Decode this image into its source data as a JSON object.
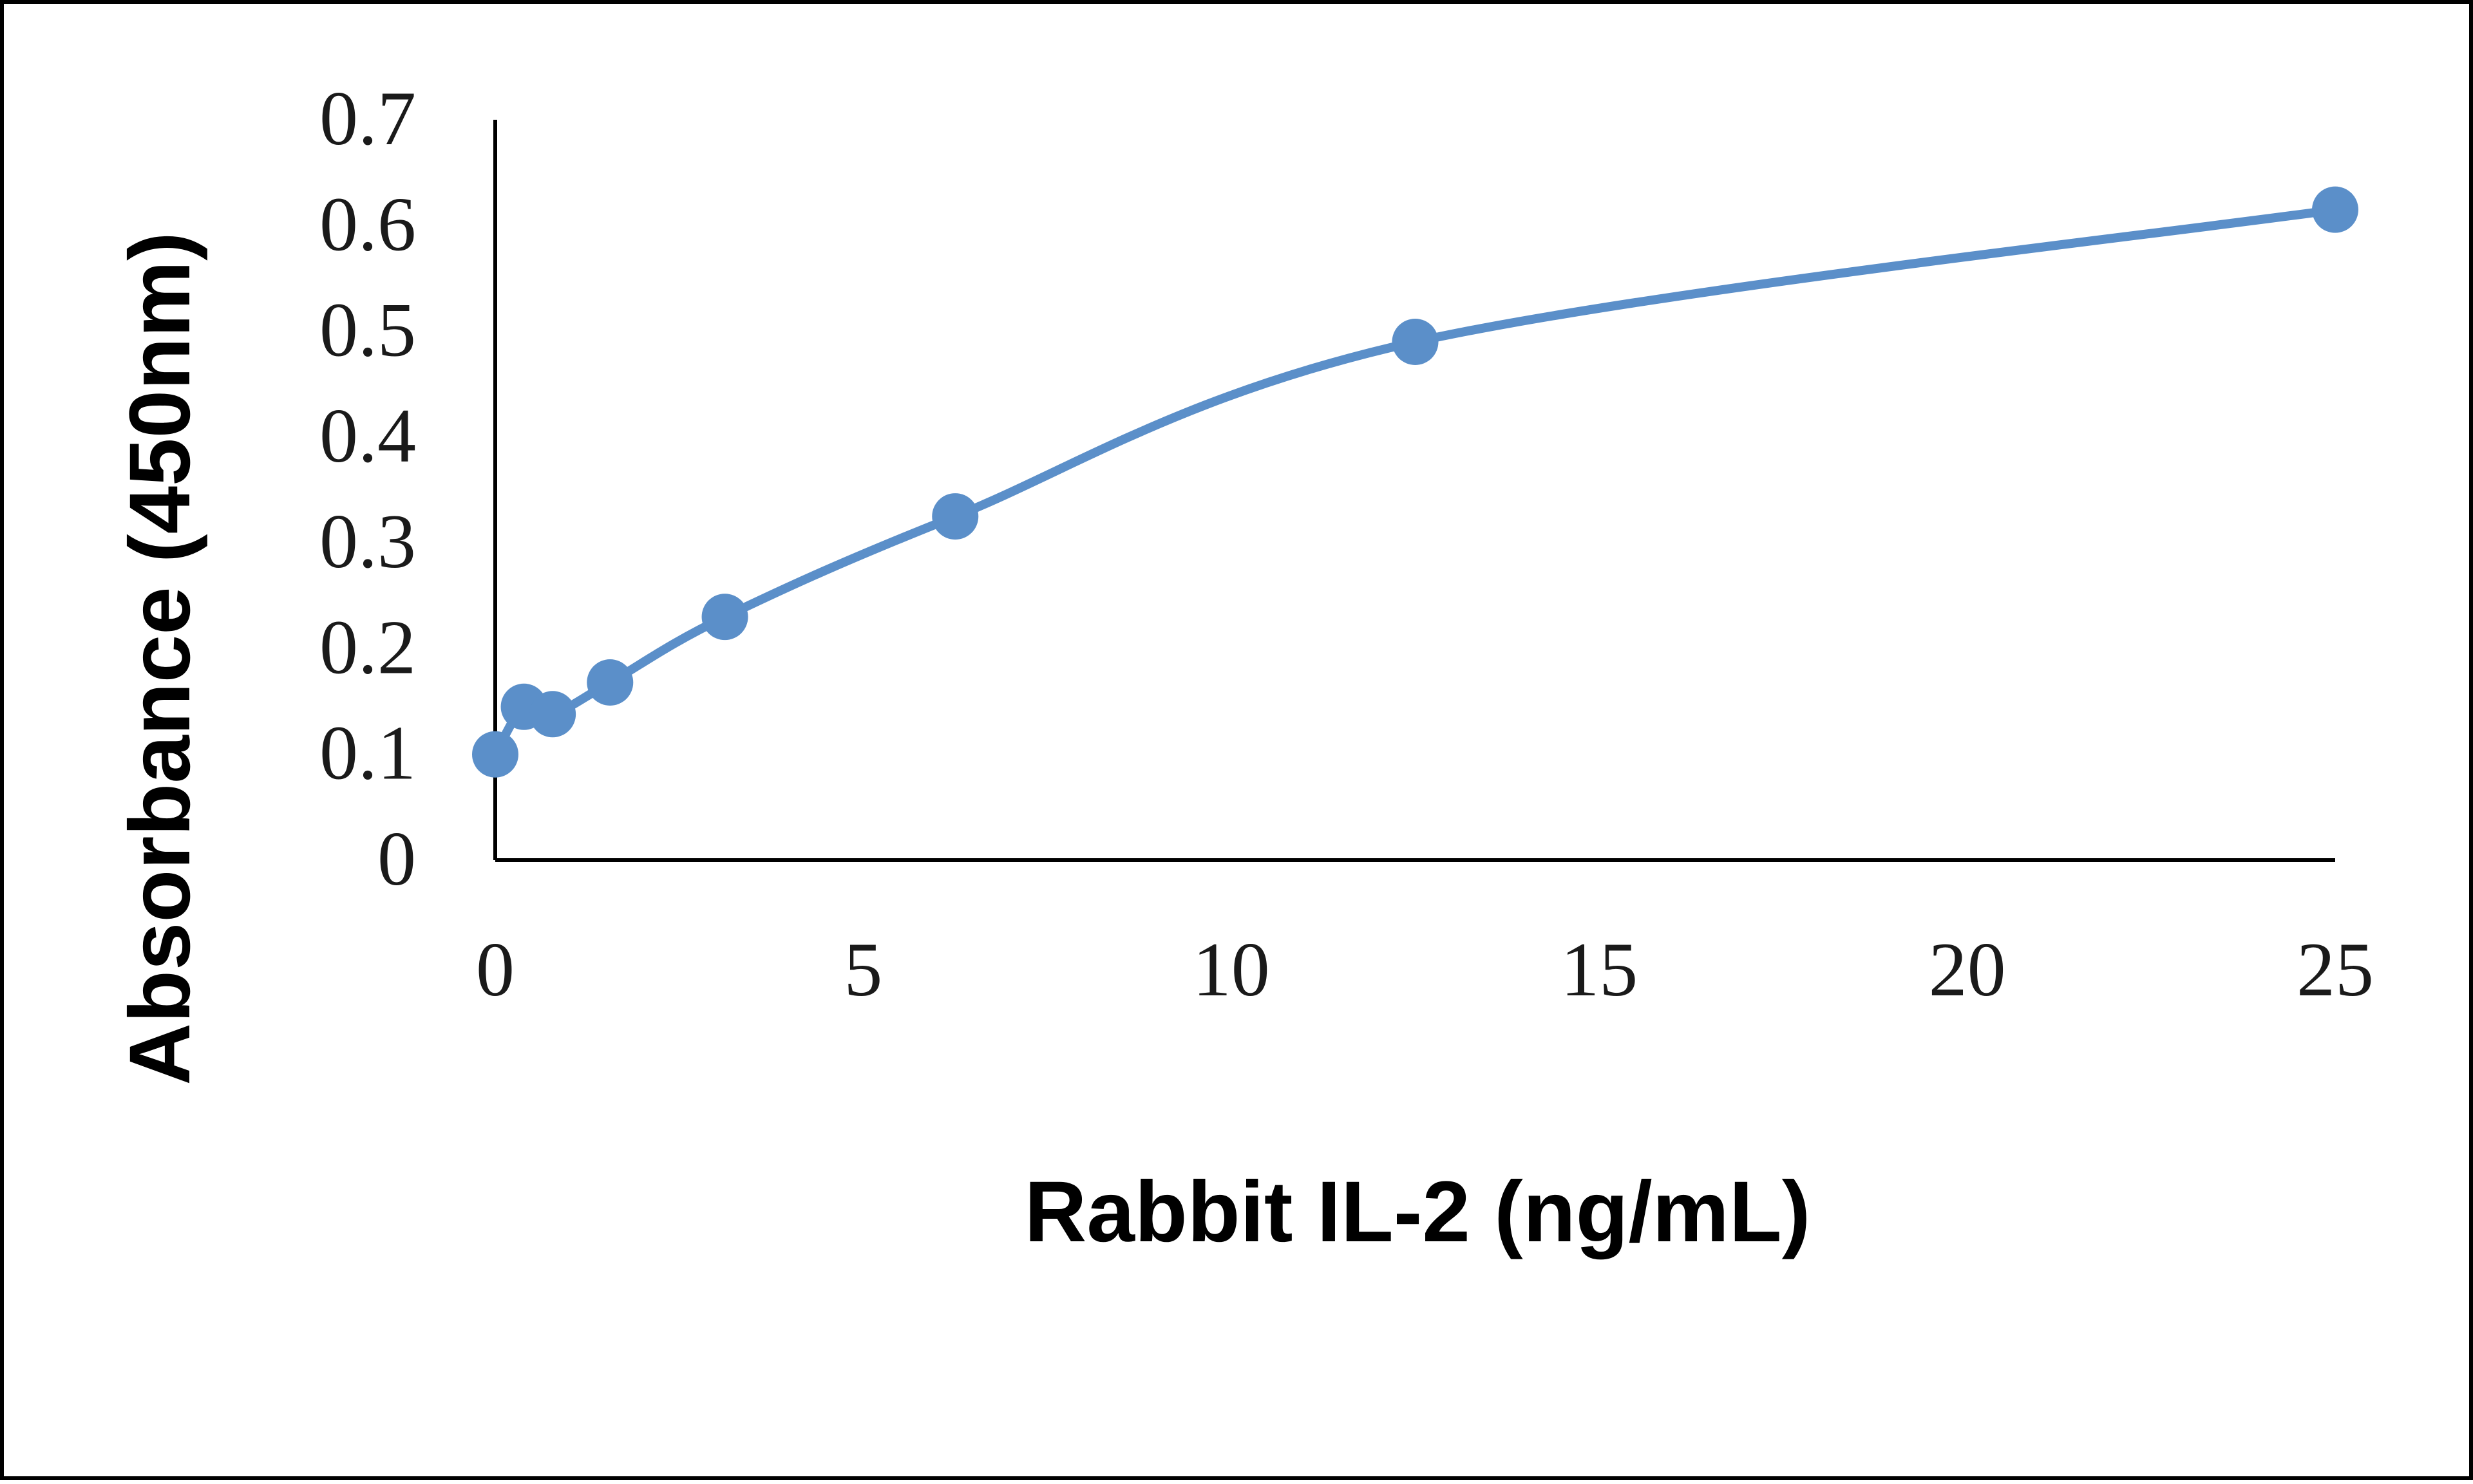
{
  "chart_data": {
    "type": "line",
    "title": "",
    "xlabel": "Rabbit IL-2 (ng/mL)",
    "ylabel": "Absorbance (450nm)",
    "xlim": [
      0,
      25
    ],
    "ylim": [
      0,
      0.7
    ],
    "xticks": [
      "0",
      "5",
      "10",
      "15",
      "20",
      "25"
    ],
    "yticks": [
      "0",
      "0.1",
      "0.2",
      "0.3",
      "0.4",
      "0.5",
      "0.6",
      "0.7"
    ],
    "grid": false,
    "legend": "none",
    "smooth": true,
    "color": "#5b8fc9",
    "series": [
      {
        "x": [
          0,
          0.39,
          0.78,
          1.56,
          3.12,
          6.25,
          12.5,
          25
        ],
        "y": [
          0.1,
          0.145,
          0.138,
          0.168,
          0.23,
          0.325,
          0.49,
          0.615
        ]
      }
    ]
  }
}
